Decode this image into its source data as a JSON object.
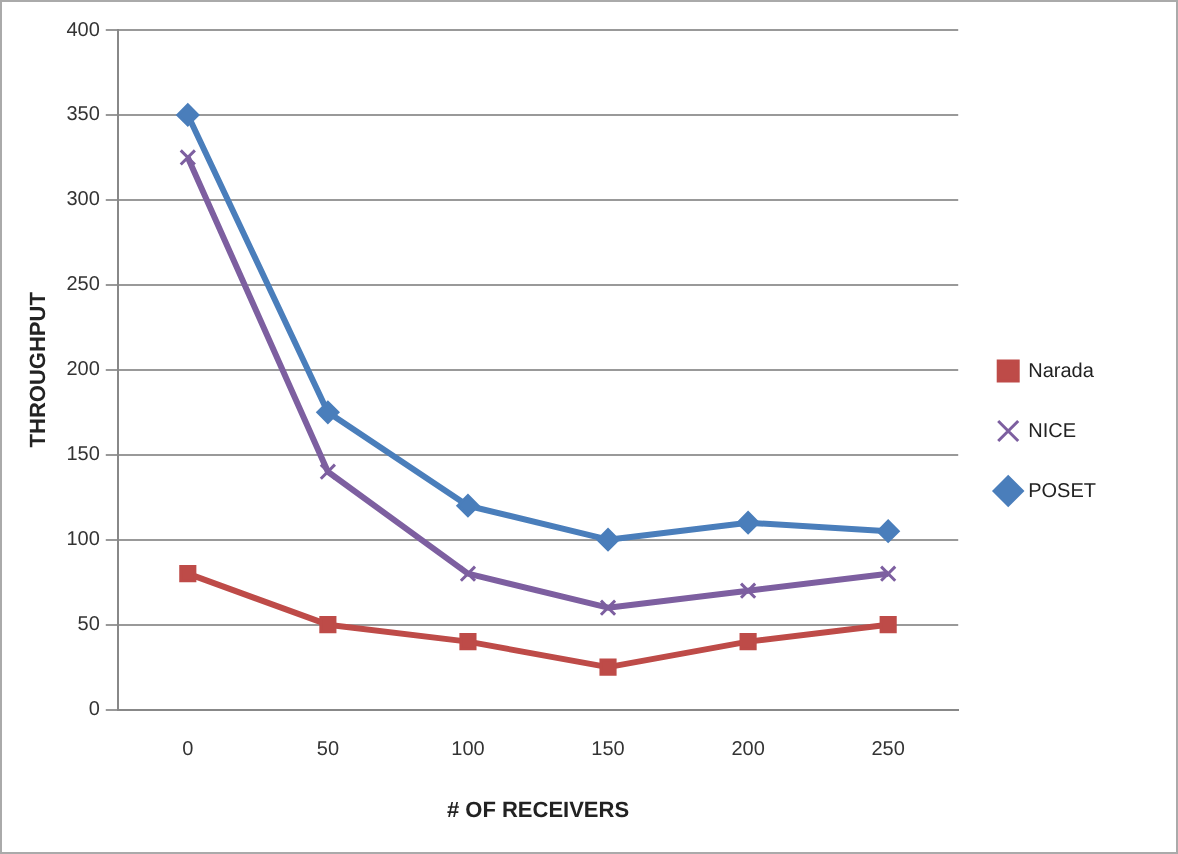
{
  "chart_data": {
    "type": "line",
    "xlabel": "# OF RECEIVERS",
    "ylabel": "THROUGHPUT",
    "categories": [
      "0",
      "50",
      "100",
      "150",
      "200",
      "250"
    ],
    "series": [
      {
        "name": "Narada",
        "color": "#be4b48",
        "marker": "square",
        "values": [
          80,
          50,
          40,
          25,
          40,
          50
        ]
      },
      {
        "name": "NICE",
        "color": "#7d5fa0",
        "marker": "cross",
        "values": [
          325,
          140,
          80,
          60,
          70,
          80
        ]
      },
      {
        "name": "POSET",
        "color": "#4a7ebb",
        "marker": "diamond",
        "values": [
          350,
          175,
          120,
          100,
          110,
          105
        ]
      }
    ],
    "ylim": [
      0,
      400
    ],
    "yticks": [
      0,
      50,
      100,
      150,
      200,
      250,
      300,
      350,
      400
    ],
    "grid": "y",
    "legend": "right"
  }
}
